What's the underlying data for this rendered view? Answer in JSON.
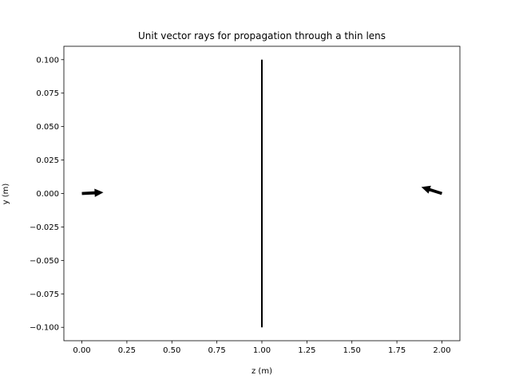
{
  "chart_data": {
    "type": "quiver",
    "title": "Unit vector rays for propagation through a thin lens",
    "xlabel": "z (m)",
    "ylabel": "y (m)",
    "xlim": [
      -0.1,
      2.1
    ],
    "ylim": [
      -0.11,
      0.11
    ],
    "xticks": [
      "0.00",
      "0.25",
      "0.50",
      "0.75",
      "1.00",
      "1.25",
      "1.50",
      "1.75",
      "2.00"
    ],
    "yticks": [
      "0.100",
      "0.075",
      "0.050",
      "0.025",
      "0.000",
      "−0.025",
      "−0.050",
      "−0.075",
      "−0.100"
    ],
    "lens": {
      "z": 1.0,
      "y_min": -0.1,
      "y_max": 0.1
    },
    "vectors": [
      {
        "z": 0.0,
        "y": 0.0,
        "dz": 1.0,
        "dy": 0.05
      },
      {
        "z": 2.0,
        "y": 0.0,
        "dz": -0.95,
        "dy": 0.3
      }
    ],
    "grid": false,
    "legend": "none"
  }
}
